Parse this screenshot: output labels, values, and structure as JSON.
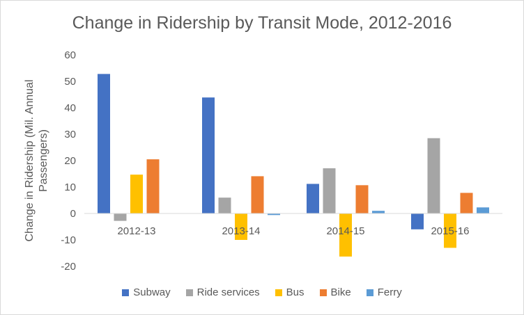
{
  "chart_data": {
    "type": "bar",
    "title": "Change in Ridership by Transit Mode, 2012-2016",
    "xlabel": "",
    "ylabel_lines": [
      "Change in Ridership (Mil. Annual",
      "Passengers)"
    ],
    "categories": [
      "2012-13",
      "2013-14",
      "2014-15",
      "2015-16"
    ],
    "series": [
      {
        "name": "Subway",
        "color": "#4472c4",
        "values": [
          52.8,
          43.9,
          11.2,
          -6.0
        ]
      },
      {
        "name": "Ride services",
        "color": "#a5a5a5",
        "values": [
          -2.8,
          6.0,
          17.1,
          28.5
        ]
      },
      {
        "name": "Bus",
        "color": "#ffc000",
        "values": [
          14.7,
          -10.0,
          -16.3,
          -13.0
        ]
      },
      {
        "name": "Bike",
        "color": "#ed7d31",
        "values": [
          20.5,
          14.1,
          10.7,
          7.8
        ]
      },
      {
        "name": "Ferry",
        "color": "#5b9bd5",
        "values": [
          0.0,
          -0.6,
          1.0,
          2.3
        ]
      }
    ],
    "ylim": [
      -20,
      60
    ],
    "yticks": [
      -20,
      -10,
      0,
      10,
      20,
      30,
      40,
      50,
      60
    ],
    "grid": false,
    "legend": "bottom"
  }
}
